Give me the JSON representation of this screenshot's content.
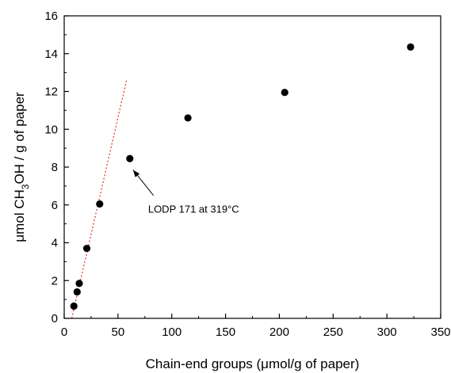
{
  "chart_data": {
    "type": "scatter",
    "title": "",
    "xlabel": "Chain-end groups (μmol/g of paper)",
    "ylabel": {
      "pre": "μmol CH",
      "sub": "3",
      "post": "OH / g of paper"
    },
    "xlim": [
      0,
      350
    ],
    "ylim": [
      0,
      16
    ],
    "xticks": [
      0,
      50,
      100,
      150,
      200,
      250,
      300,
      350
    ],
    "yticks": [
      0,
      2,
      4,
      6,
      8,
      10,
      12,
      14,
      16
    ],
    "grid": false,
    "legend": "none",
    "series": [
      {
        "marker_color": "#000000",
        "points": [
          {
            "x": 9,
            "y": 0.65
          },
          {
            "x": 12,
            "y": 1.4
          },
          {
            "x": 14,
            "y": 1.85
          },
          {
            "x": 21,
            "y": 3.7
          },
          {
            "x": 33,
            "y": 6.05
          },
          {
            "x": 61,
            "y": 8.45
          },
          {
            "x": 115,
            "y": 10.6
          },
          {
            "x": 205,
            "y": 11.95
          },
          {
            "x": 322,
            "y": 14.35
          }
        ]
      }
    ],
    "trend_line": {
      "style": "dotted",
      "color": "#e0302a",
      "from": {
        "x": 7,
        "y": 0
      },
      "to": {
        "x": 58,
        "y": 12.6
      }
    },
    "annotations": [
      {
        "text": "LODP 171 at 319°C",
        "text_at": {
          "x": 78,
          "y": 5.6
        },
        "arrow_from": {
          "x": 83,
          "y": 6.5
        },
        "arrow_to": {
          "x": 64,
          "y": 7.85
        }
      }
    ]
  }
}
